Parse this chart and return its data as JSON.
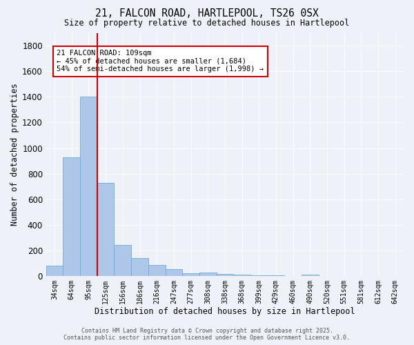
{
  "title_line1": "21, FALCON ROAD, HARTLEPOOL, TS26 0SX",
  "title_line2": "Size of property relative to detached houses in Hartlepool",
  "xlabel": "Distribution of detached houses by size in Hartlepool",
  "ylabel": "Number of detached properties",
  "bar_color": "#aec6e8",
  "bar_edge_color": "#6aadd5",
  "vline_color": "#cc0000",
  "vline_x_idx": 2.5,
  "annotation_text": "21 FALCON ROAD: 109sqm\n← 45% of detached houses are smaller (1,684)\n54% of semi-detached houses are larger (1,998) →",
  "annotation_box_color": "#ffffff",
  "annotation_box_edge": "#cc0000",
  "categories": [
    "34sqm",
    "64sqm",
    "95sqm",
    "125sqm",
    "156sqm",
    "186sqm",
    "216sqm",
    "247sqm",
    "277sqm",
    "308sqm",
    "338sqm",
    "368sqm",
    "399sqm",
    "429sqm",
    "460sqm",
    "490sqm",
    "520sqm",
    "551sqm",
    "581sqm",
    "612sqm",
    "642sqm"
  ],
  "bar_heights": [
    80,
    930,
    1400,
    730,
    245,
    140,
    85,
    55,
    25,
    30,
    15,
    12,
    8,
    5,
    0,
    10,
    0,
    0,
    0,
    0,
    0
  ],
  "ylim": [
    0,
    1900
  ],
  "yticks": [
    0,
    200,
    400,
    600,
    800,
    1000,
    1200,
    1400,
    1600,
    1800
  ],
  "background_color": "#eef2f8",
  "grid_color": "#ffffff",
  "footer_line1": "Contains HM Land Registry data © Crown copyright and database right 2025.",
  "footer_line2": "Contains public sector information licensed under the Open Government Licence v3.0."
}
